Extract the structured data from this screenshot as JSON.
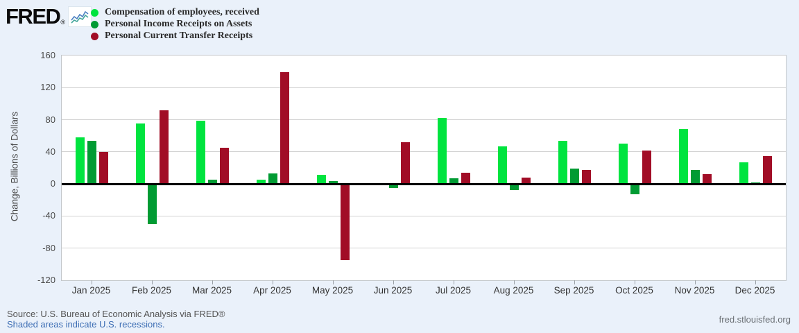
{
  "brand": {
    "logo_text": "FRED",
    "registered_mark": "®"
  },
  "chart_data": {
    "type": "bar",
    "title": "",
    "xlabel": "",
    "ylabel": "Change, Billions of Dollars",
    "ylim": [
      -120,
      160
    ],
    "yticks": [
      160,
      120,
      80,
      40,
      0,
      -40,
      -80,
      -120
    ],
    "grid": true,
    "legend_position": "top-left",
    "categories": [
      "Jan 2025",
      "Feb 2025",
      "Mar 2025",
      "Apr 2025",
      "May 2025",
      "Jun 2025",
      "Jul 2025",
      "Aug 2025",
      "Sep 2025",
      "Oct 2025",
      "Nov 2025",
      "Dec 2025"
    ],
    "series": [
      {
        "name": "Compensation of employees, received",
        "color": "#00e43f",
        "values": [
          58,
          75,
          79,
          5,
          11,
          0,
          82,
          47,
          54,
          50,
          68,
          27
        ]
      },
      {
        "name": "Personal Income Receipts on Assets",
        "color": "#019b33",
        "values": [
          54,
          -50,
          5,
          13,
          4,
          -5,
          7,
          -8,
          19,
          -13,
          17,
          2
        ]
      },
      {
        "name": "Personal Current Transfer Receipts",
        "color": "#a10d26",
        "values": [
          40,
          92,
          45,
          139,
          -95,
          52,
          14,
          8,
          17,
          42,
          12,
          35
        ]
      }
    ]
  },
  "footer": {
    "source": "Source: U.S. Bureau of Economic Analysis via FRED®",
    "note": "Shaded areas indicate U.S. recessions.",
    "site": "fred.stlouisfed.org"
  }
}
